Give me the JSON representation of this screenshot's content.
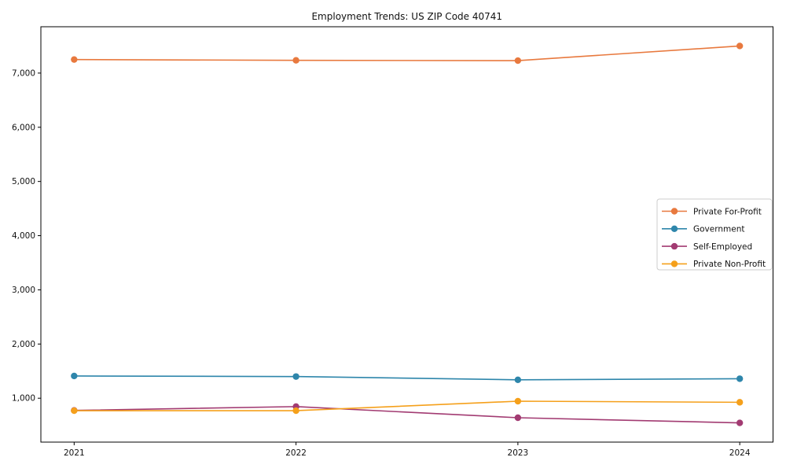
{
  "chart_data": {
    "type": "line",
    "title": "Employment Trends: US ZIP Code 40741",
    "x": [
      2021,
      2022,
      2023,
      2024
    ],
    "x_tick_labels": [
      "2021",
      "2022",
      "2023",
      "2024"
    ],
    "series": [
      {
        "name": "Private For-Profit",
        "color": "#E8793E",
        "values": [
          7250,
          7235,
          7230,
          7500
        ]
      },
      {
        "name": "Government",
        "color": "#2E86AB",
        "values": [
          1410,
          1400,
          1340,
          1360
        ]
      },
      {
        "name": "Self-Employed",
        "color": "#A23B72",
        "values": [
          775,
          845,
          640,
          545
        ]
      },
      {
        "name": "Private Non-Profit",
        "color": "#F5A01B",
        "values": [
          770,
          770,
          945,
          925
        ]
      }
    ],
    "xlabel": "",
    "ylabel": "",
    "xlim": [
      2020.85,
      2024.15
    ],
    "ylim": [
      190,
      7855
    ],
    "yticks": [
      1000,
      2000,
      3000,
      4000,
      5000,
      6000,
      7000
    ],
    "ytick_labels": [
      "1,000",
      "2,000",
      "3,000",
      "4,000",
      "5,000",
      "6,000",
      "7,000"
    ],
    "grid": "off",
    "legend_position": "right-middle",
    "frame_color": "#000000",
    "legend_border_color": "#cccccc",
    "background_color": "#ffffff"
  }
}
